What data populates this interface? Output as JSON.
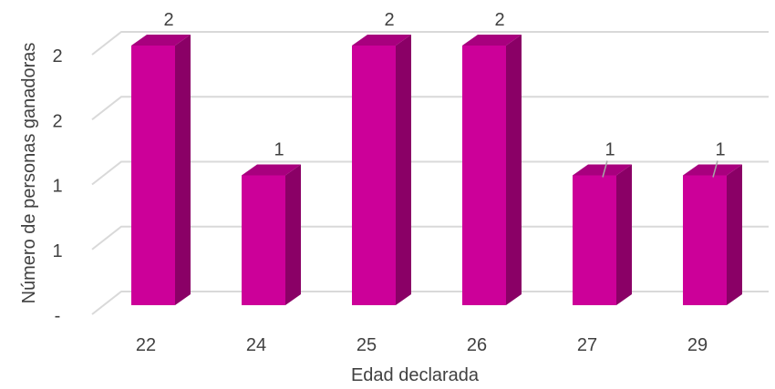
{
  "chart_data": {
    "type": "bar",
    "style": "3d-column",
    "title": "",
    "xlabel": "Edad declarada",
    "ylabel": "Número de personas ganadoras",
    "categories": [
      "22",
      "24",
      "25",
      "26",
      "27",
      "29"
    ],
    "values": [
      2,
      1,
      2,
      2,
      1,
      1
    ],
    "data_labels": [
      "2",
      "1",
      "2",
      "2",
      "1",
      "1"
    ],
    "y_tick_labels": [
      "-",
      "1",
      "1",
      "2",
      "2"
    ],
    "ylim": [
      0,
      2
    ],
    "grid": true,
    "legend": "none",
    "colors": {
      "bar_front": "#CC0099",
      "bar_side": "#8A0066",
      "bar_top": "#A8007E",
      "grid": "#D9D9D9",
      "text": "#404040"
    }
  }
}
